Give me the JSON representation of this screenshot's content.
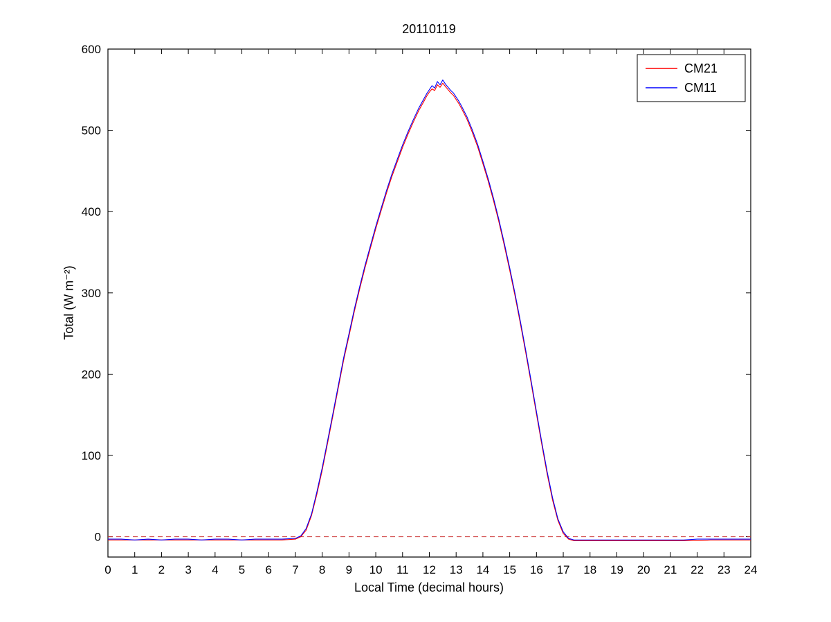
{
  "chart_data": {
    "type": "line",
    "title": "20110119",
    "xlabel": "Local Time (decimal hours)",
    "ylabel": "Total (W m⁻²)",
    "xlim": [
      0,
      24
    ],
    "ylim": [
      -25,
      600
    ],
    "xticks": [
      0,
      1,
      2,
      3,
      4,
      5,
      6,
      7,
      8,
      9,
      10,
      11,
      12,
      13,
      14,
      15,
      16,
      17,
      18,
      19,
      20,
      21,
      22,
      23,
      24
    ],
    "yticks": [
      0,
      100,
      200,
      300,
      400,
      500,
      600
    ],
    "grid": false,
    "legend_position": "top-right",
    "background": "#ffffff",
    "axis_color": "#000000",
    "zero_line": {
      "y": 0,
      "color": "#cc3333",
      "style": "dashed"
    },
    "x": [
      0,
      0.5,
      1,
      1.5,
      2,
      2.5,
      3,
      3.5,
      4,
      4.5,
      5,
      5.5,
      6,
      6.5,
      7,
      7.2,
      7.4,
      7.6,
      7.8,
      8,
      8.2,
      8.4,
      8.6,
      8.8,
      9,
      9.2,
      9.4,
      9.6,
      9.8,
      10,
      10.2,
      10.4,
      10.6,
      10.8,
      11,
      11.2,
      11.4,
      11.6,
      11.8,
      11.9,
      12,
      12.1,
      12.2,
      12.3,
      12.4,
      12.5,
      12.6,
      12.7,
      12.8,
      12.9,
      13,
      13.1,
      13.2,
      13.4,
      13.6,
      13.8,
      14,
      14.2,
      14.4,
      14.6,
      14.8,
      15,
      15.2,
      15.4,
      15.6,
      15.8,
      16,
      16.2,
      16.4,
      16.6,
      16.8,
      17,
      17.2,
      17.4,
      17.6,
      18,
      18.5,
      19,
      19.5,
      20,
      20.5,
      21,
      21.5,
      22,
      22.5,
      23,
      23.5,
      24
    ],
    "series": [
      {
        "name": "CM21",
        "color": "#ff0000",
        "values": [
          -4,
          -4,
          -4,
          -4,
          -4,
          -4,
          -4,
          -4,
          -4,
          -4,
          -4,
          -4,
          -4,
          -4,
          -3,
          0,
          8,
          26,
          52,
          82,
          115,
          149,
          183,
          217,
          247,
          277,
          305,
          331,
          355,
          379,
          401,
          423,
          443,
          461,
          479,
          495,
          510,
          524,
          536,
          542,
          547,
          551,
          549,
          556,
          553,
          558,
          554,
          550,
          546,
          543,
          538,
          533,
          527,
          514,
          498,
          480,
          459,
          437,
          413,
          387,
          358,
          328,
          296,
          262,
          226,
          189,
          151,
          113,
          77,
          45,
          20,
          4,
          -3,
          -5,
          -5,
          -5,
          -5,
          -5,
          -5,
          -5,
          -5,
          -5,
          -5,
          -5,
          -4,
          -4,
          -4,
          -4,
          -4
        ]
      },
      {
        "name": "CM11",
        "color": "#0000ff",
        "values": [
          -3,
          -3,
          -4,
          -3,
          -4,
          -3,
          -3,
          -4,
          -3,
          -3,
          -4,
          -3,
          -3,
          -3,
          -2,
          1,
          10,
          28,
          55,
          85,
          118,
          152,
          186,
          220,
          250,
          280,
          308,
          334,
          358,
          382,
          404,
          426,
          446,
          464,
          482,
          498,
          513,
          527,
          539,
          545,
          550,
          555,
          552,
          560,
          556,
          562,
          557,
          553,
          549,
          546,
          541,
          536,
          530,
          517,
          501,
          483,
          462,
          440,
          416,
          390,
          361,
          331,
          299,
          265,
          229,
          192,
          154,
          116,
          80,
          48,
          22,
          6,
          -2,
          -4,
          -4,
          -4,
          -4,
          -4,
          -4,
          -4,
          -4,
          -4,
          -4,
          -3,
          -3,
          -3,
          -3,
          -3,
          -3
        ]
      }
    ]
  }
}
